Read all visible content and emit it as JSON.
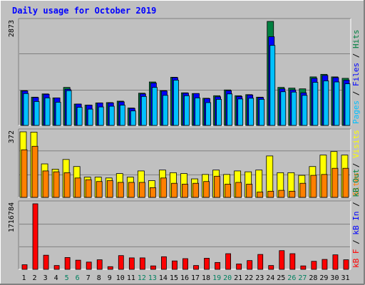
{
  "chart_data": [
    {
      "type": "bar",
      "title": "Daily usage for October 2019",
      "panel": "hits-files-pages",
      "categories": [
        "1",
        "2",
        "3",
        "4",
        "5",
        "6",
        "7",
        "8",
        "9",
        "10",
        "11",
        "12",
        "13",
        "14",
        "15",
        "16",
        "17",
        "18",
        "19",
        "20",
        "21",
        "22",
        "23",
        "24",
        "25",
        "26",
        "27",
        "28",
        "29",
        "30",
        "31"
      ],
      "weekend_days": [
        "5",
        "6",
        "12",
        "13",
        "19",
        "20",
        "26",
        "27"
      ],
      "ymax_label": "2873",
      "ylim": [
        0,
        2873
      ],
      "grid": true,
      "series": [
        {
          "name": "Hits",
          "color": "#008040",
          "values": [
            960,
            780,
            870,
            760,
            1050,
            590,
            560,
            620,
            630,
            670,
            480,
            890,
            1200,
            960,
            1330,
            900,
            880,
            750,
            820,
            980,
            820,
            850,
            780,
            2873,
            1050,
            1030,
            1010,
            1340,
            1410,
            1340,
            1300
          ]
        },
        {
          "name": "Files",
          "color": "#0000ff",
          "values": [
            950,
            770,
            860,
            760,
            1000,
            590,
            560,
            620,
            620,
            650,
            470,
            870,
            1170,
            950,
            1320,
            890,
            880,
            740,
            790,
            960,
            800,
            840,
            770,
            2450,
            1010,
            980,
            900,
            1300,
            1380,
            1320,
            1250
          ]
        },
        {
          "name": "Pages",
          "color": "#00c0ff",
          "values": [
            880,
            660,
            760,
            640,
            960,
            500,
            450,
            510,
            530,
            560,
            400,
            800,
            1050,
            830,
            1250,
            820,
            760,
            630,
            720,
            870,
            730,
            750,
            720,
            2210,
            930,
            920,
            830,
            1190,
            1230,
            1200,
            1150
          ]
        }
      ],
      "legend_labels": [
        "Pages",
        "/",
        "Files",
        "/",
        "Hits"
      ]
    },
    {
      "type": "bar",
      "panel": "visits-sites",
      "categories": [
        "1",
        "2",
        "3",
        "4",
        "5",
        "6",
        "7",
        "8",
        "9",
        "10",
        "11",
        "12",
        "13",
        "14",
        "15",
        "16",
        "17",
        "18",
        "19",
        "20",
        "21",
        "22",
        "23",
        "24",
        "25",
        "26",
        "27",
        "28",
        "29",
        "30",
        "31"
      ],
      "ymax_label": "372",
      "ylim": [
        0,
        372
      ],
      "grid": true,
      "series": [
        {
          "name": "Visits",
          "color": "#ffff00",
          "values": [
            372,
            370,
            190,
            160,
            215,
            175,
            115,
            115,
            110,
            135,
            115,
            150,
            95,
            155,
            140,
            135,
            105,
            130,
            155,
            130,
            150,
            145,
            155,
            235,
            140,
            140,
            125,
            175,
            240,
            260,
            240
          ]
        },
        {
          "name": "Sites",
          "color": "#ff8000",
          "values": [
            270,
            290,
            150,
            145,
            140,
            110,
            100,
            90,
            95,
            85,
            85,
            85,
            55,
            110,
            80,
            75,
            80,
            90,
            120,
            75,
            85,
            75,
            30,
            35,
            40,
            35,
            80,
            125,
            130,
            165,
            165
          ]
        }
      ],
      "legend_labels": [
        "Sites",
        "/",
        "Visits"
      ]
    },
    {
      "type": "bar",
      "panel": "kbytes",
      "categories": [
        "1",
        "2",
        "3",
        "4",
        "5",
        "6",
        "7",
        "8",
        "9",
        "10",
        "11",
        "12",
        "13",
        "14",
        "15",
        "16",
        "17",
        "18",
        "19",
        "20",
        "21",
        "22",
        "23",
        "24",
        "25",
        "26",
        "27",
        "28",
        "29",
        "30",
        "31"
      ],
      "ymax_label": "1716784",
      "ylim": [
        0,
        1716784
      ],
      "grid": true,
      "series": [
        {
          "name": "KBytes",
          "color": "#ff0000",
          "values": [
            120000,
            1716784,
            370000,
            100000,
            310000,
            240000,
            190000,
            250000,
            70000,
            360000,
            300000,
            300000,
            90000,
            330000,
            220000,
            280000,
            100000,
            290000,
            180000,
            410000,
            140000,
            230000,
            390000,
            100000,
            490000,
            410000,
            90000,
            210000,
            260000,
            380000,
            250000
          ]
        }
      ],
      "legend_labels": [
        "kB F",
        "/",
        "kB In",
        "/",
        "kB Out"
      ]
    }
  ]
}
